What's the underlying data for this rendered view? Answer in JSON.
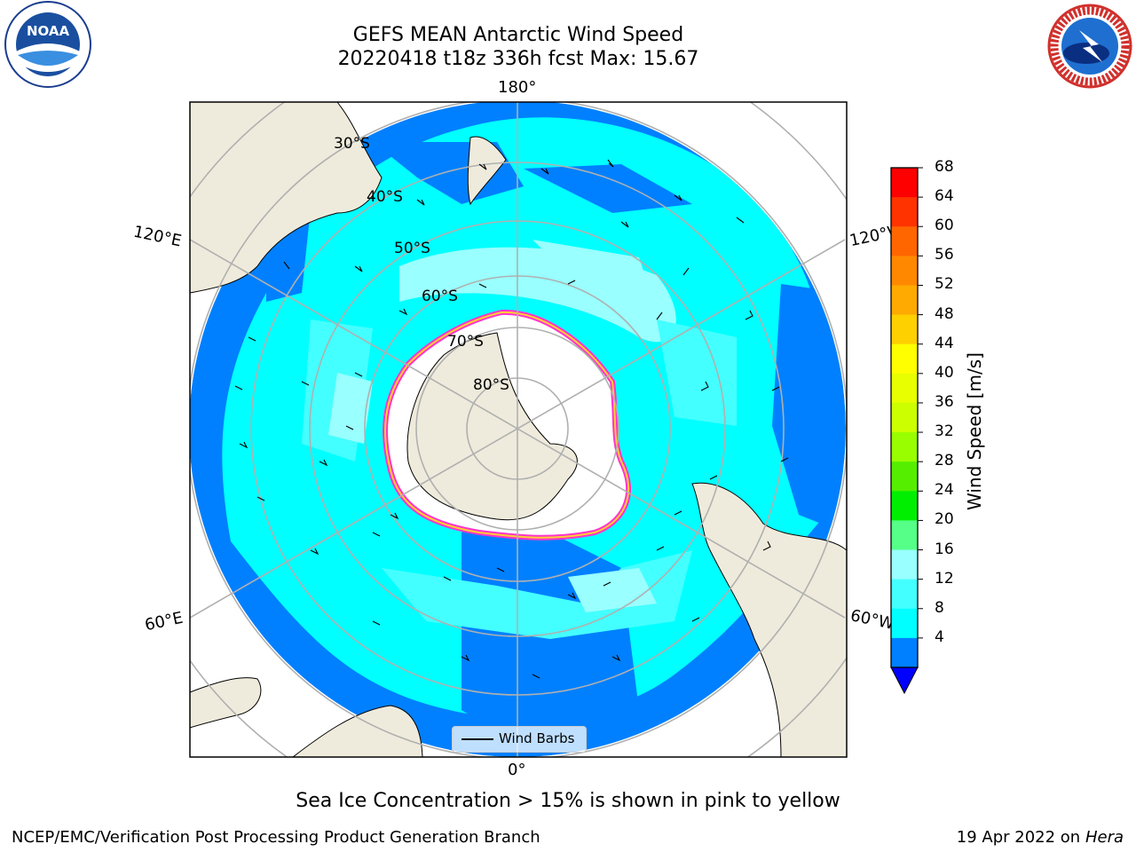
{
  "title_line1": "GEFS MEAN Antarctic Wind Speed",
  "title_line2": "20220418 t18z 336h fcst   Max: 15.67",
  "logos": {
    "left": "noaa-logo",
    "left_text": "NOAA",
    "right": "nws-logo"
  },
  "map": {
    "projection": "south-polar-stereographic",
    "lon_labels": {
      "top": "180°",
      "bottom": "0°",
      "upper_left": "120°E",
      "upper_right": "120°W",
      "lower_left": "60°E",
      "lower_right": "60°W"
    },
    "lat_labels": [
      "30°S",
      "40°S",
      "50°S",
      "60°S",
      "70°S",
      "80°S"
    ],
    "colors": {
      "ocean_4_8": "#0080ff",
      "ocean_8_12": "#00ffff",
      "ocean_12_16": "#44ffff",
      "ocean_16_20": "#99ffff",
      "land": "#efebdc",
      "ice_pink": "#ff33cc",
      "ice_yellow": "#ffcc33",
      "gridline": "#b0b0b0"
    }
  },
  "legend": {
    "label": "Wind Barbs"
  },
  "colorbar": {
    "label": "Wind Speed [m/s]",
    "ticks": [
      "68",
      "64",
      "60",
      "56",
      "52",
      "48",
      "44",
      "40",
      "36",
      "32",
      "28",
      "24",
      "20",
      "16",
      "12",
      "8",
      "4"
    ],
    "colors": [
      "#ff0000",
      "#ff3300",
      "#ff6600",
      "#ff8800",
      "#ffaa00",
      "#ffd000",
      "#ffff00",
      "#e8ff00",
      "#ccff00",
      "#99ff00",
      "#55ee00",
      "#00ee00",
      "#55ff88",
      "#99ffff",
      "#44ffff",
      "#00ffff",
      "#0080ff"
    ],
    "extend_color": "#0000ff"
  },
  "footnote": "Sea Ice Concentration > 15% is shown in pink to yellow",
  "credit_left": "NCEP/EMC/Verification Post Processing Product Generation Branch",
  "credit_date": "19 Apr 2022 on",
  "credit_machine": "Hera"
}
